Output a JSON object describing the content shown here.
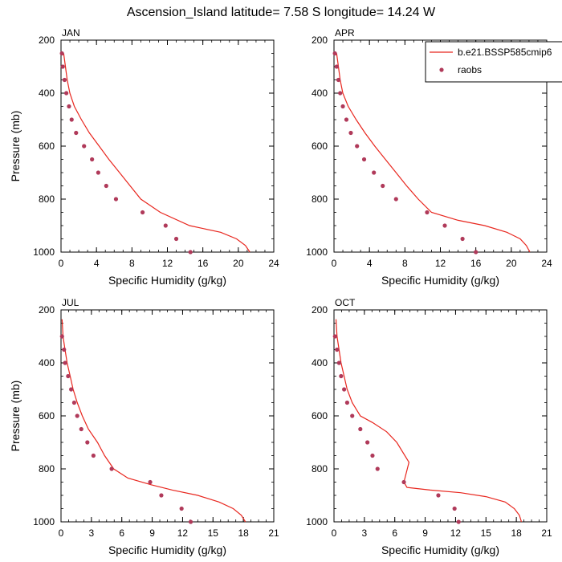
{
  "title": "Ascension_Island  latitude= 7.58 S longitude= 14.24 W",
  "legend": {
    "entries": [
      {
        "label": "b.e21.BSSP585cmip6",
        "kind": "line",
        "color": "#e8261e"
      },
      {
        "label": "raobs",
        "kind": "marker",
        "color": "#b03a5a"
      }
    ]
  },
  "chart_data": [
    {
      "type": "line",
      "title": "JAN",
      "xlabel": "Specific Humidity (g/kg)",
      "ylabel": "Pressure (mb)",
      "xlim": [
        0,
        24
      ],
      "xticks": [
        0,
        4,
        8,
        12,
        16,
        20,
        24
      ],
      "ylim": [
        200,
        1000
      ],
      "yticks": [
        200,
        400,
        600,
        800,
        1000
      ],
      "y_reversed": true,
      "series": [
        {
          "name": "b.e21.BSSP585cmip6",
          "kind": "line",
          "color": "#e8261e",
          "points": [
            [
              0.3,
              250
            ],
            [
              0.5,
              300
            ],
            [
              0.7,
              350
            ],
            [
              1.0,
              400
            ],
            [
              1.5,
              450
            ],
            [
              2.3,
              500
            ],
            [
              3.2,
              550
            ],
            [
              4.3,
              600
            ],
            [
              5.4,
              650
            ],
            [
              6.6,
              700
            ],
            [
              7.8,
              750
            ],
            [
              9.0,
              800
            ],
            [
              11.2,
              850
            ],
            [
              14.5,
              900
            ],
            [
              18.0,
              925
            ],
            [
              19.8,
              950
            ],
            [
              20.8,
              975
            ],
            [
              21.3,
              1000
            ]
          ]
        },
        {
          "name": "raobs",
          "kind": "scatter",
          "color": "#b03a5a",
          "points": [
            [
              0.1,
              250
            ],
            [
              0.2,
              300
            ],
            [
              0.4,
              350
            ],
            [
              0.6,
              400
            ],
            [
              0.9,
              450
            ],
            [
              1.2,
              500
            ],
            [
              1.7,
              550
            ],
            [
              2.6,
              600
            ],
            [
              3.5,
              650
            ],
            [
              4.2,
              700
            ],
            [
              5.1,
              750
            ],
            [
              6.2,
              800
            ],
            [
              9.2,
              850
            ],
            [
              11.8,
              900
            ],
            [
              13.0,
              950
            ],
            [
              14.6,
              1000
            ]
          ]
        }
      ]
    },
    {
      "type": "line",
      "title": "APR",
      "xlabel": "Specific Humidity (g/kg)",
      "ylabel": "",
      "xlim": [
        0,
        24
      ],
      "xticks": [
        0,
        4,
        8,
        12,
        16,
        20,
        24
      ],
      "ylim": [
        200,
        1000
      ],
      "yticks": [
        200,
        400,
        600,
        800,
        1000
      ],
      "y_reversed": true,
      "series": [
        {
          "name": "b.e21.BSSP585cmip6",
          "kind": "line",
          "color": "#e8261e",
          "points": [
            [
              0.3,
              250
            ],
            [
              0.5,
              300
            ],
            [
              0.7,
              350
            ],
            [
              1.0,
              400
            ],
            [
              1.6,
              450
            ],
            [
              2.5,
              500
            ],
            [
              3.5,
              550
            ],
            [
              4.6,
              600
            ],
            [
              5.8,
              650
            ],
            [
              7.0,
              700
            ],
            [
              8.2,
              750
            ],
            [
              9.5,
              800
            ],
            [
              11.0,
              850
            ],
            [
              14.0,
              880
            ],
            [
              17.0,
              900
            ],
            [
              19.5,
              925
            ],
            [
              21.0,
              950
            ],
            [
              21.7,
              975
            ],
            [
              22.1,
              1000
            ]
          ]
        },
        {
          "name": "raobs",
          "kind": "scatter",
          "color": "#b03a5a",
          "points": [
            [
              0.1,
              250
            ],
            [
              0.3,
              300
            ],
            [
              0.5,
              350
            ],
            [
              0.7,
              400
            ],
            [
              1.0,
              450
            ],
            [
              1.4,
              500
            ],
            [
              1.9,
              550
            ],
            [
              2.6,
              600
            ],
            [
              3.4,
              650
            ],
            [
              4.5,
              700
            ],
            [
              5.5,
              750
            ],
            [
              7.0,
              800
            ],
            [
              10.5,
              850
            ],
            [
              12.5,
              900
            ],
            [
              14.5,
              950
            ],
            [
              16.0,
              1000
            ]
          ]
        }
      ]
    },
    {
      "type": "line",
      "title": "JUL",
      "xlabel": "Specific Humidity (g/kg)",
      "ylabel": "Pressure (mb)",
      "xlim": [
        0,
        21
      ],
      "xticks": [
        0,
        3,
        6,
        9,
        12,
        15,
        18,
        21
      ],
      "ylim": [
        200,
        1000
      ],
      "yticks": [
        200,
        400,
        600,
        800,
        1000
      ],
      "y_reversed": true,
      "series": [
        {
          "name": "b.e21.BSSP585cmip6",
          "kind": "line",
          "color": "#e8261e",
          "points": [
            [
              0.1,
              235
            ],
            [
              0.2,
              300
            ],
            [
              0.4,
              350
            ],
            [
              0.6,
              400
            ],
            [
              0.9,
              450
            ],
            [
              1.2,
              500
            ],
            [
              1.6,
              550
            ],
            [
              2.1,
              600
            ],
            [
              2.7,
              650
            ],
            [
              3.6,
              700
            ],
            [
              4.3,
              750
            ],
            [
              5.2,
              800
            ],
            [
              6.6,
              835
            ],
            [
              8.9,
              860
            ],
            [
              11.0,
              880
            ],
            [
              13.5,
              900
            ],
            [
              15.6,
              925
            ],
            [
              17.0,
              950
            ],
            [
              17.8,
              975
            ],
            [
              18.2,
              1000
            ]
          ]
        },
        {
          "name": "raobs",
          "kind": "scatter",
          "color": "#b03a5a",
          "points": [
            [
              0.1,
              300
            ],
            [
              0.3,
              350
            ],
            [
              0.4,
              400
            ],
            [
              0.7,
              450
            ],
            [
              1.0,
              500
            ],
            [
              1.3,
              550
            ],
            [
              1.6,
              600
            ],
            [
              2.0,
              650
            ],
            [
              2.6,
              700
            ],
            [
              3.2,
              750
            ],
            [
              5.0,
              800
            ],
            [
              8.8,
              850
            ],
            [
              9.9,
              900
            ],
            [
              11.9,
              950
            ],
            [
              12.8,
              1000
            ]
          ]
        }
      ]
    },
    {
      "type": "line",
      "title": "OCT",
      "xlabel": "Specific Humidity (g/kg)",
      "ylabel": "",
      "xlim": [
        0,
        21
      ],
      "xticks": [
        0,
        3,
        6,
        9,
        12,
        15,
        18,
        21
      ],
      "ylim": [
        200,
        1000
      ],
      "yticks": [
        200,
        400,
        600,
        800,
        1000
      ],
      "y_reversed": true,
      "series": [
        {
          "name": "b.e21.BSSP585cmip6",
          "kind": "line",
          "color": "#e8261e",
          "points": [
            [
              0.2,
              235
            ],
            [
              0.3,
              300
            ],
            [
              0.5,
              350
            ],
            [
              0.7,
              400
            ],
            [
              1.0,
              450
            ],
            [
              1.3,
              500
            ],
            [
              1.8,
              550
            ],
            [
              2.6,
              600
            ],
            [
              3.8,
              625
            ],
            [
              5.2,
              660
            ],
            [
              6.2,
              700
            ],
            [
              7.4,
              775
            ],
            [
              6.9,
              850
            ],
            [
              7.2,
              870
            ],
            [
              9.5,
              880
            ],
            [
              12.5,
              890
            ],
            [
              15.0,
              905
            ],
            [
              16.9,
              925
            ],
            [
              17.8,
              950
            ],
            [
              18.3,
              975
            ],
            [
              18.5,
              1000
            ]
          ]
        },
        {
          "name": "raobs",
          "kind": "scatter",
          "color": "#b03a5a",
          "points": [
            [
              0.1,
              300
            ],
            [
              0.3,
              350
            ],
            [
              0.5,
              400
            ],
            [
              0.7,
              450
            ],
            [
              1.0,
              500
            ],
            [
              1.3,
              550
            ],
            [
              1.8,
              600
            ],
            [
              2.6,
              650
            ],
            [
              3.3,
              700
            ],
            [
              3.8,
              750
            ],
            [
              4.3,
              800
            ],
            [
              6.9,
              850
            ],
            [
              10.3,
              900
            ],
            [
              11.9,
              950
            ],
            [
              12.3,
              1000
            ]
          ]
        }
      ]
    }
  ]
}
